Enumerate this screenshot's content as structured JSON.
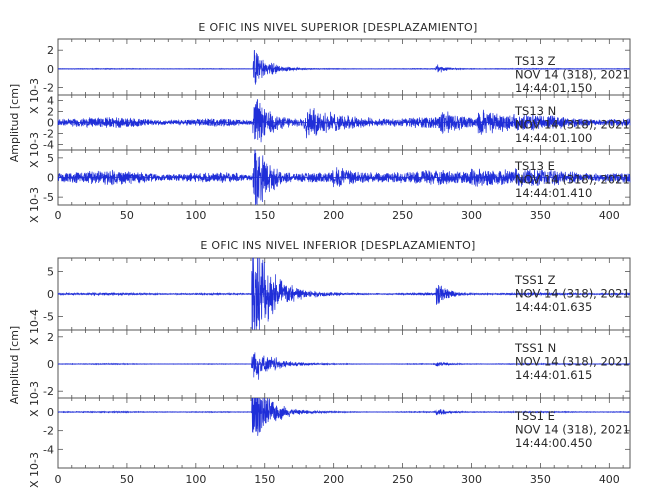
{
  "chart_data": [
    {
      "type": "line",
      "title": "E OFIC INS NIVEL SUPERIOR [DESPLAZAMIENTO]",
      "ylabel": "Amplitud [cm]",
      "xlim": [
        0,
        415
      ],
      "x_ticks": [
        "0",
        "50",
        "100",
        "150",
        "200",
        "250",
        "300",
        "350",
        "400"
      ],
      "line_color": "#1f2ed8",
      "panels": [
        {
          "name": "TS13 Z",
          "scale_label": "X 10-3",
          "ylim": [
            -2.8,
            3.2
          ],
          "y_ticks": [
            "2",
            "0",
            "-2"
          ],
          "note": [
            "TS13   Z",
            "NOV 14 (318), 2021",
            "14:44:01.150"
          ]
        },
        {
          "name": "TS13 N",
          "scale_label": "X 10-3",
          "ylim": [
            -5,
            5
          ],
          "y_ticks": [
            "4",
            "2",
            "0",
            "-2",
            "-4"
          ],
          "note": [
            "TS13   N",
            "NOV 14 (318), 2021",
            "14:44:01.100"
          ]
        },
        {
          "name": "TS13 E",
          "scale_label": "X 10-3",
          "ylim": [
            -7,
            7
          ],
          "y_ticks": [
            "5",
            "0",
            "-5"
          ],
          "note": [
            "TS13   E",
            "NOV 14 (318), 2021",
            "14:44:01.410"
          ]
        }
      ]
    },
    {
      "type": "line",
      "title": "E OFIC INS NIVEL INFERIOR [DESPLAZAMIENTO]",
      "ylabel": "Amplitud [cm]",
      "xlim": [
        0,
        415
      ],
      "x_ticks": [
        "0",
        "50",
        "100",
        "150",
        "200",
        "250",
        "300",
        "350",
        "400"
      ],
      "line_color": "#1f2ed8",
      "panels": [
        {
          "name": "TSS1 Z",
          "scale_label": "X 10-4",
          "ylim": [
            -8,
            8
          ],
          "y_ticks": [
            "5",
            "0",
            "-5"
          ],
          "note": [
            "TSS1   Z",
            "NOV 14 (318), 2021",
            "14:44:01.635"
          ]
        },
        {
          "name": "TSS1 N",
          "scale_label": "X 10-3",
          "ylim": [
            -2.5,
            2.5
          ],
          "y_ticks": [
            "2",
            "0",
            "-2"
          ],
          "note": [
            "TSS1   N",
            "NOV 14 (318), 2021",
            "14:44:01.615"
          ]
        },
        {
          "name": "TSS1 E",
          "scale_label": "X 10-3",
          "ylim": [
            -6,
            1.5
          ],
          "y_ticks": [
            "0",
            "-2",
            "-4"
          ],
          "note": [
            "TSS1   E",
            "NOV 14 (318), 2021",
            "14:44:00.450"
          ]
        }
      ]
    }
  ]
}
